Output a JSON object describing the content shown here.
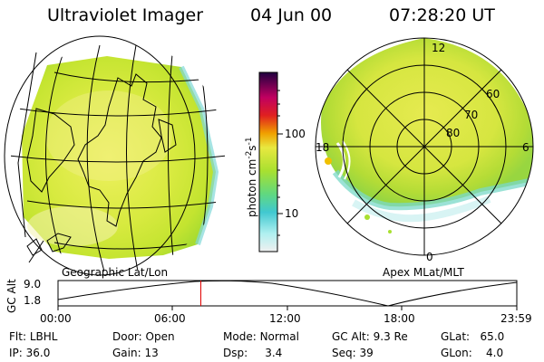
{
  "header": {
    "instrument": "Ultraviolet Imager",
    "date": "04 Jun 00",
    "time": "07:28:20 UT"
  },
  "colors": {
    "ring_green": "#b4e01a",
    "ring_yellow": "#e8e850",
    "time_marker": "#e00000"
  },
  "left_panel": {
    "label": "Geographic Lat/Lon"
  },
  "right_panel": {
    "label": "Apex MLat/MLT",
    "lat_labels": [
      "60",
      "70",
      "80"
    ],
    "mlt_labels": [
      "12",
      "18",
      "6",
      "0"
    ]
  },
  "colorbar": {
    "unit_text": "photon cm",
    "unit_exp1": "-2",
    "unit_mid": "s",
    "unit_exp2": "-1",
    "ticks": [
      "100",
      "10"
    ]
  },
  "altitude_plot": {
    "ylabel": "GC Alt",
    "ymax": "9.0",
    "ymin": "1.8",
    "xticks": [
      "00:00",
      "06:00",
      "12:00",
      "18:00",
      "23:59"
    ],
    "marker_hour": 7.47
  },
  "info": {
    "filter_label": "Flt:",
    "filter_value": "LBHL",
    "door_label": "Door:",
    "door_value": "Open",
    "mode_label": "Mode:",
    "mode_value": "Normal",
    "gcalt_label": "GC Alt:",
    "gcalt_value": "9.3 Re",
    "glat_label": "GLat:",
    "glat_value": "65.0",
    "ip_label": "IP:",
    "ip_value": "36.0",
    "gain_label": "Gain:",
    "gain_value": "13",
    "dsp_label": "Dsp:",
    "dsp_value": "3.4",
    "seq_label": "Seq:",
    "seq_value": "39",
    "glon_label": "GLon:",
    "glon_value": "4.0"
  }
}
